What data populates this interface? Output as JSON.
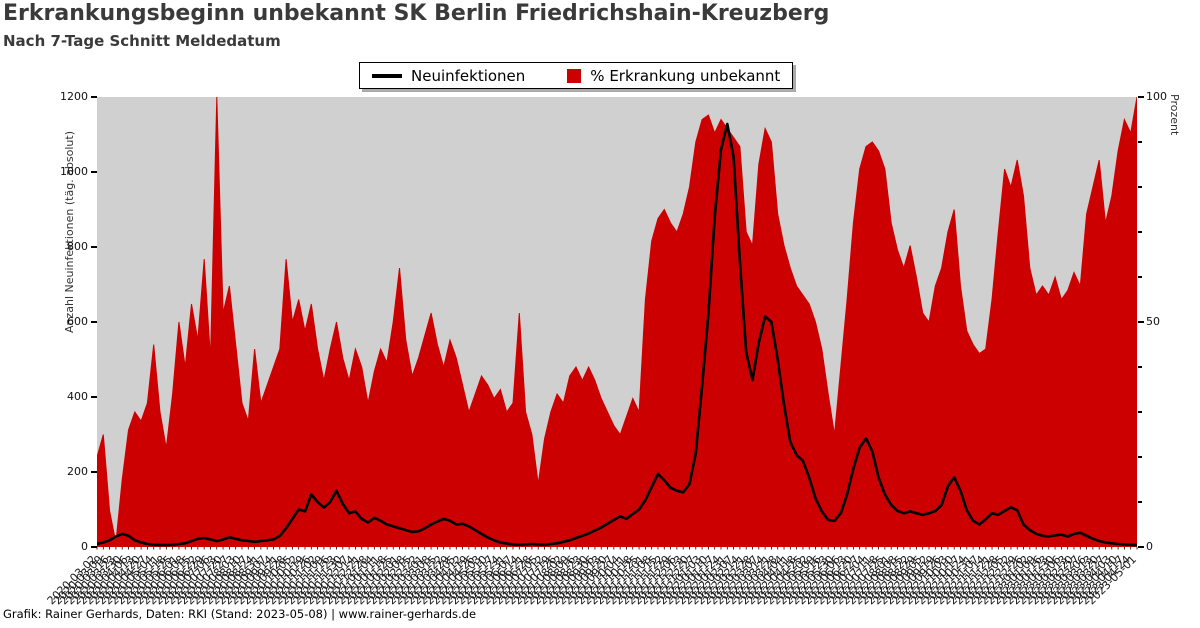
{
  "title": "Erkrankungsbeginn unbekannt SK Berlin Friedrichshain-Kreuzberg",
  "subtitle": "Nach 7-Tage Schnitt Meldedatum",
  "footer": "Grafik: Rainer Gerhards, Daten: RKI (Stand: 2023-05-08) | www.rainer-gerhards.de",
  "legend": {
    "position": "top-center",
    "items": [
      {
        "label": "Neuinfektionen",
        "marker": "line",
        "color": "#000000"
      },
      {
        "label": "% Erkrankung unbekannt",
        "marker": "square",
        "color": "#cc0000"
      }
    ]
  },
  "colors": {
    "area": "#cc0000",
    "line": "#000000",
    "plot_background": "#d0d0d0",
    "title_text": "#3a3a3a",
    "legend_shadow": "#ababab"
  },
  "chart_data": {
    "type": "area",
    "note": "red area = % Erkrankung unbekannt (right axis), black line = Neuinfektionen 7-Tage-Schnitt (left axis)",
    "grid": false,
    "legend_position": "top-center",
    "axes": {
      "left": {
        "label": "Anzahl Neuinfektionen (täg. absolut)",
        "max": 1200,
        "min": 0,
        "ticks": [
          0,
          200,
          400,
          600,
          800,
          1000,
          1200
        ]
      },
      "right": {
        "label": "Prozent",
        "max": 100,
        "min": 0,
        "ticks": [
          0,
          50,
          100
        ],
        "minor_step": 10
      }
    },
    "x": [
      "2020-03-02",
      "2020-03-09",
      "2020-03-16",
      "2020-03-23",
      "2020-03-30",
      "2020-04-06",
      "2020-04-13",
      "2020-04-20",
      "2020-04-27",
      "2020-05-04",
      "2020-05-11",
      "2020-05-18",
      "2020-05-25",
      "2020-06-01",
      "2020-06-08",
      "2020-06-15",
      "2020-06-22",
      "2020-06-29",
      "2020-07-06",
      "2020-07-13",
      "2020-07-20",
      "2020-07-27",
      "2020-08-03",
      "2020-08-10",
      "2020-08-17",
      "2020-08-24",
      "2020-08-31",
      "2020-09-07",
      "2020-09-14",
      "2020-09-21",
      "2020-09-28",
      "2020-10-05",
      "2020-10-12",
      "2020-10-19",
      "2020-10-26",
      "2020-11-02",
      "2020-11-09",
      "2020-11-16",
      "2020-11-23",
      "2020-11-30",
      "2020-12-07",
      "2020-12-14",
      "2020-12-21",
      "2020-12-28",
      "2021-01-04",
      "2021-01-11",
      "2021-01-18",
      "2021-01-25",
      "2021-02-01",
      "2021-02-08",
      "2021-02-15",
      "2021-02-22",
      "2021-03-01",
      "2021-03-08",
      "2021-03-15",
      "2021-03-22",
      "2021-03-29",
      "2021-04-05",
      "2021-04-12",
      "2021-04-19",
      "2021-04-26",
      "2021-05-03",
      "2021-05-10",
      "2021-05-17",
      "2021-05-24",
      "2021-05-31",
      "2021-06-07",
      "2021-06-14",
      "2021-06-21",
      "2021-06-28",
      "2021-07-05",
      "2021-07-12",
      "2021-07-19",
      "2021-07-26",
      "2021-08-02",
      "2021-08-09",
      "2021-08-16",
      "2021-08-23",
      "2021-08-30",
      "2021-09-06",
      "2021-09-13",
      "2021-09-20",
      "2021-09-27",
      "2021-10-04",
      "2021-10-11",
      "2021-10-18",
      "2021-10-25",
      "2021-11-01",
      "2021-11-08",
      "2021-11-15",
      "2021-11-22",
      "2021-11-29",
      "2021-12-06",
      "2021-12-13",
      "2021-12-20",
      "2021-12-27",
      "2022-01-03",
      "2022-01-10",
      "2022-01-17",
      "2022-01-24",
      "2022-01-31",
      "2022-02-07",
      "2022-02-14",
      "2022-02-21",
      "2022-02-28",
      "2022-03-07",
      "2022-03-14",
      "2022-03-21",
      "2022-03-28",
      "2022-04-04",
      "2022-04-11",
      "2022-04-18",
      "2022-04-25",
      "2022-05-02",
      "2022-05-09",
      "2022-05-16",
      "2022-05-23",
      "2022-05-30",
      "2022-06-06",
      "2022-06-13",
      "2022-06-20",
      "2022-06-27",
      "2022-07-04",
      "2022-07-11",
      "2022-07-18",
      "2022-07-25",
      "2022-08-01",
      "2022-08-08",
      "2022-08-15",
      "2022-08-22",
      "2022-08-29",
      "2022-09-05",
      "2022-09-12",
      "2022-09-19",
      "2022-09-26",
      "2022-10-03",
      "2022-10-10",
      "2022-10-17",
      "2022-10-24",
      "2022-10-31",
      "2022-11-07",
      "2022-11-14",
      "2022-11-21",
      "2022-11-28",
      "2022-12-05",
      "2022-12-12",
      "2022-12-19",
      "2022-12-26",
      "2023-01-02",
      "2023-01-09",
      "2023-01-16",
      "2023-01-23",
      "2023-01-30",
      "2023-02-06",
      "2023-02-13",
      "2023-02-20",
      "2023-02-27",
      "2023-03-06",
      "2023-03-13",
      "2023-03-20",
      "2023-03-27",
      "2023-04-03",
      "2023-04-10",
      "2023-04-17",
      "2023-04-24",
      "2023-05-01"
    ],
    "series": [
      {
        "name": "Neuinfektionen",
        "axis": "left",
        "color": "#000000",
        "values": [
          8,
          12,
          18,
          28,
          35,
          30,
          18,
          12,
          8,
          6,
          5,
          5,
          6,
          8,
          10,
          16,
          22,
          24,
          20,
          16,
          20,
          26,
          22,
          18,
          16,
          14,
          16,
          18,
          20,
          30,
          50,
          75,
          100,
          95,
          140,
          120,
          105,
          120,
          150,
          115,
          90,
          95,
          75,
          65,
          78,
          70,
          60,
          55,
          50,
          45,
          40,
          42,
          50,
          60,
          68,
          75,
          70,
          60,
          62,
          55,
          45,
          35,
          25,
          18,
          12,
          9,
          7,
          6,
          7,
          8,
          7,
          6,
          8,
          10,
          14,
          18,
          24,
          30,
          36,
          44,
          52,
          62,
          72,
          82,
          75,
          88,
          100,
          125,
          160,
          195,
          178,
          158,
          150,
          146,
          168,
          250,
          430,
          620,
          880,
          1060,
          1128,
          1040,
          760,
          520,
          445,
          545,
          615,
          600,
          500,
          380,
          280,
          245,
          230,
          185,
          130,
          95,
          72,
          70,
          90,
          140,
          210,
          265,
          290,
          255,
          185,
          140,
          112,
          96,
          90,
          95,
          90,
          86,
          90,
          96,
          112,
          162,
          186,
          150,
          98,
          70,
          60,
          74,
          90,
          86,
          96,
          106,
          98,
          60,
          45,
          35,
          30,
          28,
          31,
          33,
          28,
          35,
          38,
          30,
          22,
          16,
          12,
          10,
          8,
          7,
          6,
          5
        ]
      },
      {
        "name": "% Erkrankung unbekannt",
        "axis": "right",
        "color": "#cc0000",
        "values": [
          20,
          25,
          8,
          1,
          15,
          26,
          30,
          28,
          32,
          45,
          30,
          22,
          34,
          50,
          40,
          54,
          46,
          64,
          42,
          100,
          52,
          58,
          45,
          32,
          28,
          44,
          32,
          36,
          40,
          44,
          64,
          50,
          55,
          48,
          54,
          44,
          37,
          44,
          50,
          42,
          37,
          44,
          40,
          32,
          39,
          44,
          41,
          50,
          62,
          46,
          38,
          42,
          47,
          52,
          45,
          40,
          46,
          42,
          36,
          30,
          34,
          38,
          36,
          33,
          35,
          30,
          32,
          52,
          30,
          25,
          14,
          24,
          30,
          34,
          32,
          38,
          40,
          37,
          40,
          37,
          33,
          30,
          27,
          25,
          29,
          33,
          30,
          55,
          68,
          73,
          75,
          72,
          70,
          74,
          80,
          90,
          95,
          96,
          92,
          95,
          93,
          91,
          89,
          70,
          67,
          85,
          93,
          90,
          74,
          67,
          62,
          58,
          56,
          54,
          50,
          44,
          34,
          25,
          40,
          55,
          72,
          84,
          89,
          90,
          88,
          84,
          72,
          66,
          62,
          67,
          60,
          52,
          50,
          58,
          62,
          70,
          75,
          58,
          48,
          45,
          43,
          44,
          55,
          70,
          84,
          80,
          86,
          78,
          62,
          56,
          58,
          56,
          60,
          55,
          57,
          61,
          58,
          74,
          80,
          86,
          72,
          78,
          88,
          95,
          92,
          100
        ]
      }
    ]
  }
}
